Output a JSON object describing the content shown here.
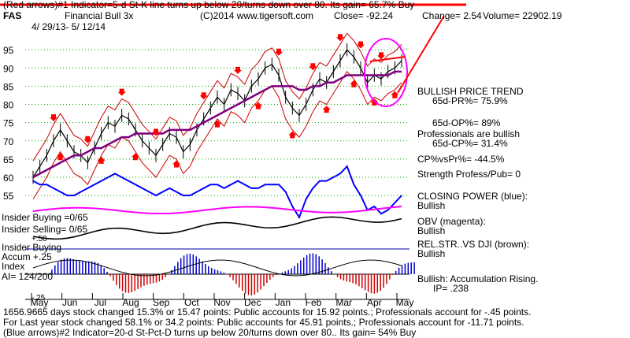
{
  "header": {
    "line1": "(Red arrows)#1 Indicator=5-d St-K line turns up below 20/turns down over 80.  Its gain= 65.7% Buy",
    "ticker": "FAS",
    "name": "Financial Bull 3x",
    "copyright": "(C)2014 www.tigersoft.com",
    "close": "Close= -92.24",
    "change": "Change= 2.54",
    "volume": "Volume= 22902.19",
    "date_range": "4/ 29/13- 5/ 12/14"
  },
  "left_labels": {
    "insider_buying": "Insider Buying =0/65",
    "insider_selling": "Insider Selling= 0/65",
    "plus50": "+.50",
    "insider_buying2": "Insider Buying",
    "accum": "Accum  +.25",
    "index": "Index",
    "ai": "AI= 124/200",
    "minus25": "-.25"
  },
  "right_panel": {
    "bullish_price_trend": "BULLISH PRICE TREND",
    "pr": "65d-PR%= 75.9%",
    "op": "65d-OP%= 89%",
    "professionals": "Professionals are bullish",
    "cp": "65d-CP%= 31.4%",
    "cpvspr": "CP%vsPr%= -44.5%",
    "strength": "Strength Profess/Pub= 0",
    "closing_power": "CLOSING POWER (blue):",
    "closing_power_val": "Bullish",
    "obv": "OBV (magenta):",
    "obv_val": "Bullish",
    "relstr": "REL.STR..VS DJI (brown):",
    "relstr_val": "Bullish",
    "accum": "Bullish:  Accumulation Rising.",
    "ip": "IP= .238"
  },
  "footer": {
    "line1": "1656.9665 days stock changed  15.3% or  15.47 points:  Public accounts for  15.92 points.;  Professionals account for -.45 points.",
    "line2": "For Last year stock changed  58.1% or  34.2 points:  Public accounts for  45.91 points.;  Professionals account for -11.71 points.",
    "line3": "(Blue arrows)#2 Indicator=20-d St-Pct-D turns up below 20/turns down over 80.. Its gain= 54% Buy"
  },
  "colors": {
    "price": "#000000",
    "band": "#cc0000",
    "ma": "#800080",
    "closing_power": "#0000ff",
    "obv": "#ff00ff",
    "relstr": "#8b4513",
    "accum_pos": "#0000cc",
    "accum_neg": "#cc0000",
    "grid": "#00aa00",
    "annotation": "#ff0000",
    "circle": "#ff00ff"
  },
  "chart_data": {
    "type": "line",
    "title": "Financial Bull 3x",
    "x_tick_labels": [
      "May",
      "Jun",
      "Jul",
      "Aug",
      "Sep",
      "Oct",
      "Nov",
      "Dec",
      "Jan",
      "Feb",
      "Mar",
      "Apr",
      "May"
    ],
    "y_tick_labels": [
      "95",
      "90",
      "85",
      "80",
      "75",
      "70",
      "65",
      "60",
      "55"
    ],
    "ylim": [
      52,
      100
    ],
    "grid": true,
    "series": [
      {
        "values": [
          60,
          63,
          66,
          70,
          73,
          70,
          67,
          66,
          64,
          68,
          72,
          75,
          74,
          77,
          76,
          73,
          70,
          68,
          66,
          69,
          72,
          71,
          67,
          69,
          73,
          76,
          79,
          82,
          80,
          84,
          83,
          81,
          85,
          87,
          90,
          91,
          88,
          82,
          79,
          77,
          80,
          84,
          87,
          86,
          89,
          92,
          95,
          93,
          90,
          86,
          88,
          87,
          89,
          90,
          92
        ]
      },
      {
        "values": [
          60,
          61,
          62,
          63,
          64,
          65,
          66,
          66,
          67,
          68,
          68,
          69,
          70,
          71,
          71,
          72,
          72,
          72,
          72,
          72,
          73,
          73,
          73,
          73,
          74,
          75,
          76,
          77,
          78,
          79,
          80,
          81,
          82,
          83,
          84,
          85,
          85,
          85,
          85,
          84,
          84,
          85,
          85,
          86,
          86,
          87,
          88,
          88,
          88,
          88,
          88,
          88,
          88,
          89,
          89
        ]
      },
      {
        "values": [
          59,
          58,
          58,
          57,
          56,
          55,
          55,
          56,
          57,
          58,
          59,
          60,
          61,
          60,
          59,
          58,
          57,
          56,
          55,
          56,
          57,
          56,
          55,
          55,
          56,
          57,
          58,
          58,
          57,
          58,
          59,
          58,
          57,
          57,
          58,
          58,
          58,
          56,
          52,
          49,
          54,
          57,
          59,
          59,
          60,
          61,
          63,
          58,
          55,
          51,
          52,
          50,
          51,
          53,
          55
        ]
      }
    ]
  }
}
